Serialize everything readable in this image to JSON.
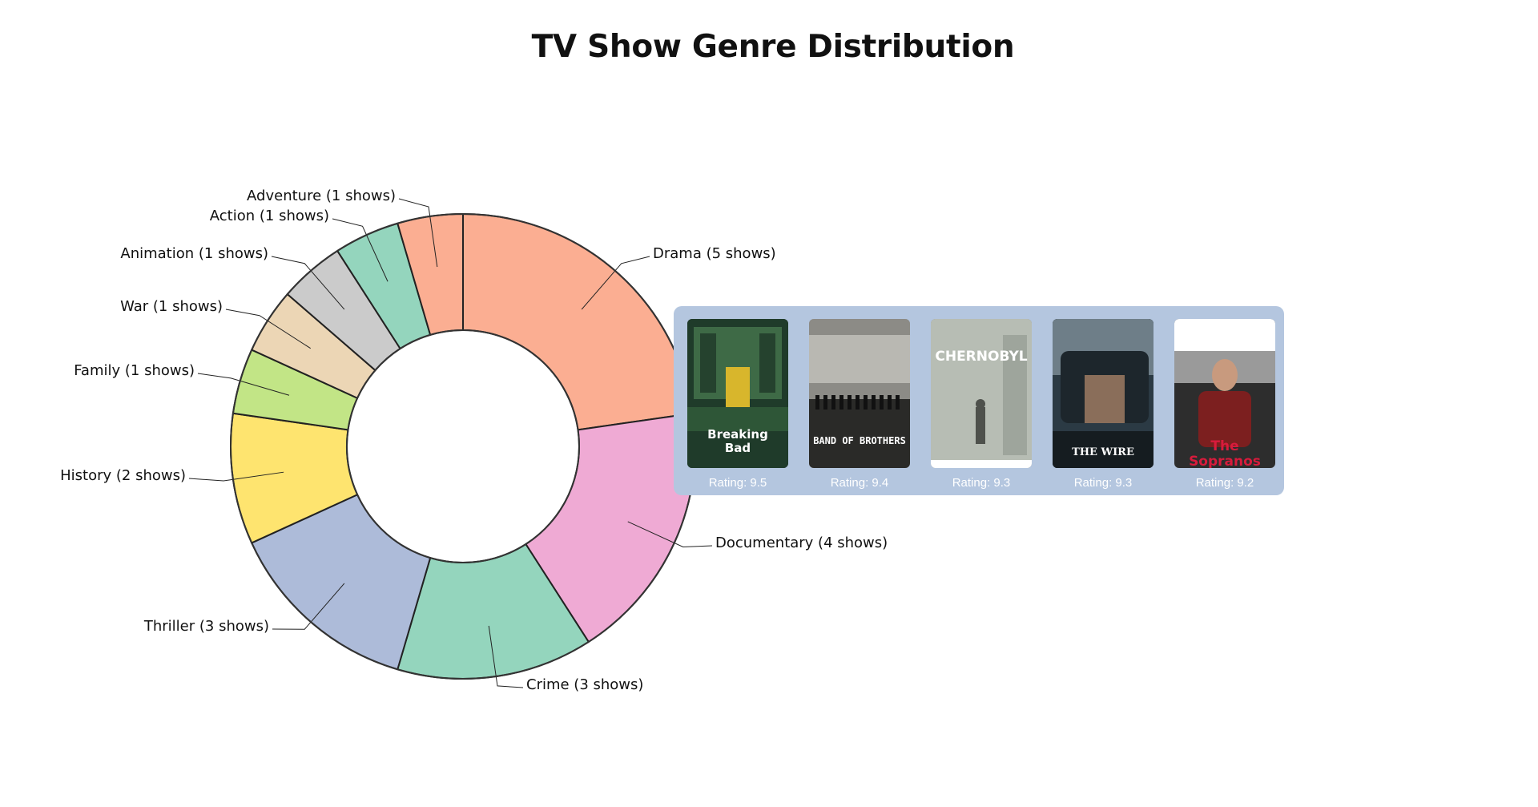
{
  "colors": {
    "panel_bg": "#b4c6df",
    "rating_text": "#ffffff"
  },
  "chart_data": {
    "type": "pie",
    "variant": "donut",
    "title": "TV Show Genre Distribution",
    "slices": [
      {
        "label": "Drama (5 shows)",
        "genre": "Drama",
        "value": 5,
        "color": "#fbae92"
      },
      {
        "label": "Documentary (4 shows)",
        "genre": "Documentary",
        "value": 4,
        "color": "#efaad4"
      },
      {
        "label": "Crime (3 shows)",
        "genre": "Crime",
        "value": 3,
        "color": "#94d5bd"
      },
      {
        "label": "Thriller (3 shows)",
        "genre": "Thriller",
        "value": 3,
        "color": "#adbbd9"
      },
      {
        "label": "History (2 shows)",
        "genre": "History",
        "value": 2,
        "color": "#fee46f"
      },
      {
        "label": "Family (1 shows)",
        "genre": "Family",
        "value": 1,
        "color": "#c2e586"
      },
      {
        "label": "War (1 shows)",
        "genre": "War",
        "value": 1,
        "color": "#ecd6b5"
      },
      {
        "label": "Animation (1 shows)",
        "genre": "Animation",
        "value": 1,
        "color": "#cbcbcb"
      },
      {
        "label": "Action (1 shows)",
        "genre": "Action",
        "value": 1,
        "color": "#94d5bd"
      },
      {
        "label": "Adventure (1 shows)",
        "genre": "Adventure",
        "value": 1,
        "color": "#fbae92"
      }
    ],
    "tooltip": {
      "posters": [
        {
          "title": "Breaking Bad",
          "title_lines": [
            "Breaking",
            "Bad"
          ],
          "rating": "Rating: 9.5",
          "theme": "breaking-bad"
        },
        {
          "title": "BAND OF BROTHERS",
          "title_lines": [
            "BAND OF BROTHERS"
          ],
          "rating": "Rating: 9.4",
          "theme": "band-of-brothers"
        },
        {
          "title": "CHERNOBYL",
          "title_lines": [
            "CHERNOBYL"
          ],
          "rating": "Rating: 9.3",
          "theme": "chernobyl"
        },
        {
          "title": "THE WIRE",
          "title_lines": [
            "THE WIRE"
          ],
          "rating": "Rating: 9.3",
          "theme": "the-wire"
        },
        {
          "title": "The Sopranos",
          "title_lines": [
            "The Sopranos"
          ],
          "rating": "Rating: 9.2",
          "theme": "sopranos"
        }
      ]
    }
  }
}
